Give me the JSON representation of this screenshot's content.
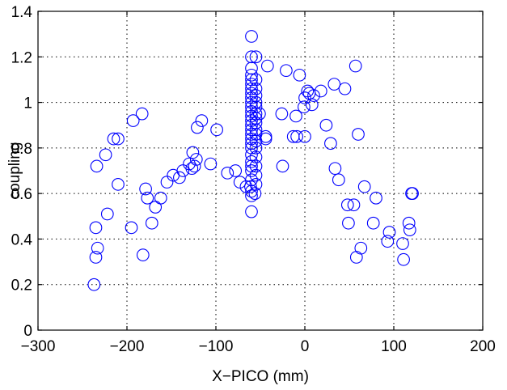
{
  "chart_data": {
    "type": "scatter",
    "title": "",
    "xlabel": "X−PICO (mm)",
    "ylabel": "coupling",
    "xlim": [
      -300,
      200
    ],
    "ylim": [
      0,
      1.4
    ],
    "xticks": [
      -300,
      -200,
      -100,
      0,
      100,
      200
    ],
    "yticks": [
      0,
      0.2,
      0.4,
      0.6,
      0.8,
      1,
      1.2,
      1.4
    ],
    "xtick_labels": [
      "−300",
      "−200",
      "−100",
      "0",
      "100",
      "200"
    ],
    "ytick_labels": [
      "0",
      "0.2",
      "0.4",
      "0.6",
      "0.8",
      "1",
      "1.2",
      "1.4"
    ],
    "grid": true,
    "marker": "circle-open",
    "color": "#0000ff",
    "series": [
      {
        "x": [
          -237,
          -235,
          -235,
          -234,
          -233,
          -224,
          -222,
          -215,
          -210,
          -210,
          -195,
          -193,
          -183,
          -182,
          -179,
          -177,
          -172,
          -168,
          -162,
          -155,
          -148,
          -141,
          -137,
          -130,
          -127,
          -126,
          -124,
          -122,
          -121,
          -116,
          -106,
          -99,
          -87,
          -78,
          -73,
          -66,
          -61,
          -60,
          -60,
          -60,
          -60,
          -60,
          -60,
          -60,
          -60,
          -60,
          -60,
          -60,
          -60,
          -60,
          -60,
          -60,
          -60,
          -60,
          -60,
          -60,
          -60,
          -60,
          -60,
          -60,
          -60,
          -60,
          -60,
          -60,
          -60,
          -56,
          -55,
          -55,
          -55,
          -55,
          -55,
          -55,
          -55,
          -55,
          -55,
          -55,
          -55,
          -55,
          -55,
          -55,
          -55,
          -55,
          -55,
          -51,
          -44,
          -44,
          -42,
          -26,
          -25,
          -21,
          -13,
          -10,
          -9,
          -6,
          -1,
          0,
          0,
          3,
          5,
          8,
          10,
          18,
          24,
          29,
          33,
          34,
          38,
          45,
          48,
          49,
          55,
          57,
          58,
          60,
          63,
          67,
          77,
          80,
          93,
          95,
          110,
          111,
          117,
          118,
          120,
          121
        ],
        "y": [
          0.2,
          0.45,
          0.32,
          0.72,
          0.36,
          0.77,
          0.51,
          0.84,
          0.64,
          0.84,
          0.45,
          0.92,
          0.95,
          0.33,
          0.62,
          0.58,
          0.47,
          0.54,
          0.58,
          0.65,
          0.68,
          0.67,
          0.7,
          0.73,
          0.71,
          0.78,
          0.72,
          0.75,
          0.89,
          0.92,
          0.73,
          0.88,
          0.69,
          0.7,
          0.65,
          0.63,
          0.63,
          0.52,
          0.59,
          0.61,
          0.66,
          0.7,
          0.72,
          0.74,
          0.77,
          0.8,
          0.82,
          0.84,
          0.86,
          0.88,
          0.9,
          0.92,
          0.94,
          0.96,
          0.98,
          1.0,
          1.02,
          1.04,
          1.06,
          1.08,
          1.1,
          1.12,
          1.15,
          1.2,
          1.29,
          0.6,
          0.64,
          0.68,
          0.72,
          0.76,
          0.8,
          0.83,
          0.86,
          0.88,
          0.91,
          0.93,
          0.95,
          0.98,
          1.0,
          1.03,
          1.06,
          1.1,
          1.2,
          0.95,
          0.84,
          0.85,
          1.16,
          0.95,
          0.72,
          1.14,
          0.85,
          0.94,
          0.85,
          1.12,
          0.98,
          1.02,
          0.85,
          1.05,
          1.04,
          0.99,
          1.03,
          1.05,
          0.9,
          0.82,
          1.08,
          0.71,
          0.66,
          1.06,
          0.55,
          0.47,
          0.55,
          1.16,
          0.32,
          0.86,
          0.36,
          0.63,
          0.47,
          0.58,
          0.39,
          0.43,
          0.38,
          0.31,
          0.47,
          0.44,
          0.6,
          0.6
        ]
      }
    ]
  }
}
